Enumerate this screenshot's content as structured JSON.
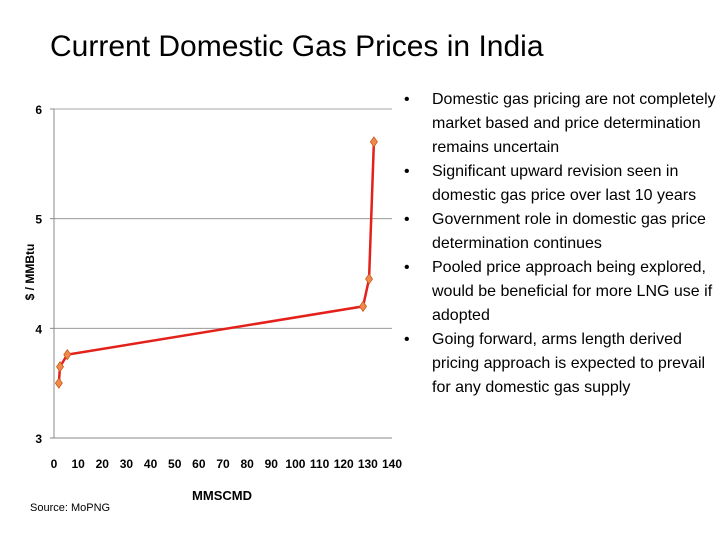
{
  "title": "Current Domestic Gas Prices in India",
  "source": "Source:  MoPNG",
  "bullet_glyph": "•",
  "bullets": [
    "Domestic gas pricing are not completely market based and price determination remains uncertain",
    "Significant upward revision seen in domestic gas price over last 10 years",
    "Government role in domestic gas price determination continues",
    "Pooled price approach being explored, would be beneficial for more LNG use if adopted",
    "Going forward, arms length derived pricing approach is expected to prevail for any domestic gas supply"
  ],
  "chart_data": {
    "type": "line",
    "title": "",
    "xlabel": "MMSCMD",
    "ylabel": "$ / MMBtu",
    "xlim": [
      0,
      140
    ],
    "ylim": [
      3,
      6
    ],
    "x_ticks": [
      0,
      10,
      20,
      30,
      40,
      50,
      60,
      70,
      80,
      90,
      100,
      110,
      120,
      130,
      140
    ],
    "y_ticks": [
      3,
      4,
      5,
      6
    ],
    "grid": "horizontal",
    "line_color": "#e32019",
    "marker_color": "#f08a4b",
    "marker": "diamond",
    "series": [
      {
        "points": [
          [
            2,
            3.5
          ],
          [
            2.5,
            3.65
          ],
          [
            5.5,
            3.76
          ],
          [
            128,
            4.2
          ],
          [
            130.5,
            4.45
          ],
          [
            132.5,
            5.7
          ]
        ]
      }
    ]
  }
}
